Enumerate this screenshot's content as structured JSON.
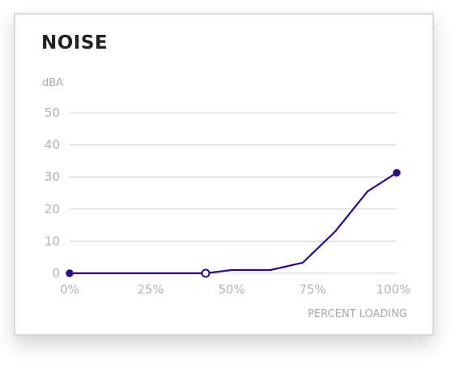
{
  "chart_data": {
    "type": "line",
    "title": "NOISE",
    "ylabel": "dBA",
    "xlabel": "PERCENT LOADING",
    "x": [
      0,
      42,
      50,
      62,
      72,
      82,
      92,
      101
    ],
    "series": [
      {
        "values": [
          0,
          0,
          1,
          1,
          3.3,
          13,
          25.5,
          31.3
        ]
      }
    ],
    "markers": [
      {
        "x": 0,
        "y": 0,
        "style": "filled"
      },
      {
        "x": 42,
        "y": 0,
        "style": "hollow"
      },
      {
        "x": 101,
        "y": 31.3,
        "style": "filled"
      }
    ],
    "xticks": [
      {
        "value": 0,
        "label": "0%"
      },
      {
        "value": 25,
        "label": "25%"
      },
      {
        "value": 50,
        "label": "50%"
      },
      {
        "value": 75,
        "label": "75%"
      },
      {
        "value": 100,
        "label": "100%"
      }
    ],
    "yticks": [
      {
        "value": 0,
        "label": "0"
      },
      {
        "value": 10,
        "label": "10"
      },
      {
        "value": 20,
        "label": "20"
      },
      {
        "value": 30,
        "label": "30"
      },
      {
        "value": 40,
        "label": "40"
      },
      {
        "value": 50,
        "label": "50"
      }
    ],
    "xlim": [
      0,
      101
    ],
    "ylim": [
      0,
      50
    ],
    "grid": "horizontal",
    "colors": {
      "line": "#2e0a7c",
      "grid": "#d0d0d0",
      "tick": "#b3b3b3"
    }
  }
}
